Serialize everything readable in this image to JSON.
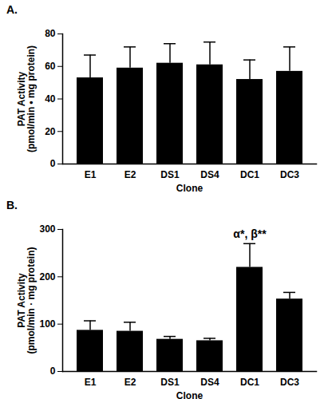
{
  "chart_data": [
    {
      "type": "bar",
      "title": "A.",
      "categories": [
        "E1",
        "E2",
        "DS1",
        "DS4",
        "DC1",
        "DC3"
      ],
      "values": [
        53,
        59,
        62,
        61,
        52,
        57
      ],
      "errors": [
        14,
        13,
        12,
        14,
        12,
        15
      ],
      "color": "#000000",
      "x_label": "Clone",
      "y_label": [
        "PAT Activity",
        "(pmol/min • mg protein)"
      ],
      "ylim": [
        0,
        80
      ],
      "yticks": [
        0,
        20,
        40,
        60,
        80
      ]
    },
    {
      "type": "bar",
      "title": "B.",
      "categories": [
        "E1",
        "E2",
        "DS1",
        "DS4",
        "DC1",
        "DC3"
      ],
      "values": [
        87,
        85,
        68,
        65,
        220,
        153
      ],
      "errors": [
        20,
        19,
        6,
        5,
        50,
        14
      ],
      "color": "#000000",
      "x_label": "Clone",
      "y_label": [
        "PAT Activity",
        "(pmol/min · mg protein)"
      ],
      "ylim": [
        0,
        300
      ],
      "yticks": [
        0,
        100,
        200,
        300
      ],
      "annotations": [
        {
          "text": "α*, β**",
          "category": "DC1"
        }
      ]
    }
  ]
}
